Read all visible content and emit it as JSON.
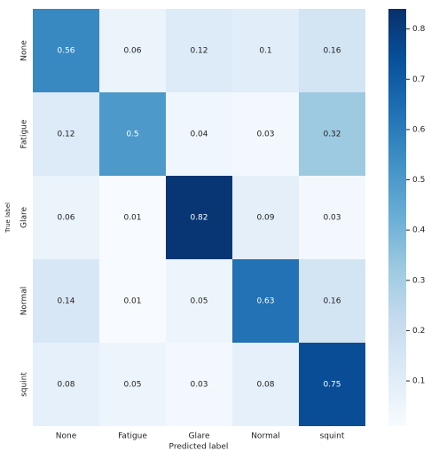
{
  "chart_data": {
    "type": "heatmap",
    "x_label": "Predicted label",
    "y_label": "True label",
    "x_categories": [
      "None",
      "Fatigue",
      "Glare",
      "Normal",
      "squint"
    ],
    "y_categories": [
      "None",
      "Fatigue",
      "Glare",
      "Normal",
      "squint"
    ],
    "values": [
      [
        0.56,
        0.06,
        0.12,
        0.1,
        0.16
      ],
      [
        0.12,
        0.5,
        0.04,
        0.03,
        0.32
      ],
      [
        0.06,
        0.01,
        0.82,
        0.09,
        0.03
      ],
      [
        0.14,
        0.01,
        0.05,
        0.63,
        0.16
      ],
      [
        0.08,
        0.05,
        0.03,
        0.08,
        0.75
      ]
    ],
    "clim": [
      0.01,
      0.84
    ],
    "cticks": [
      0.1,
      0.2,
      0.3,
      0.4,
      0.5,
      0.6,
      0.7,
      0.8
    ]
  }
}
